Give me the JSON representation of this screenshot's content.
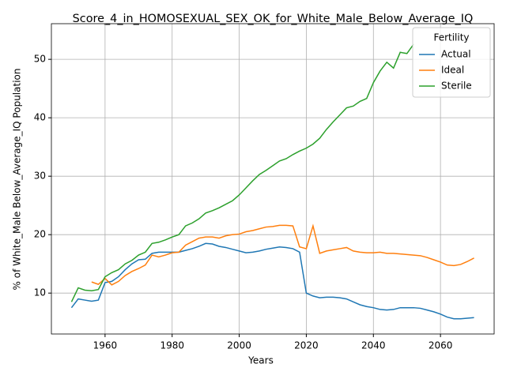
{
  "chart_data": {
    "type": "line",
    "title": "Score_4_in_HOMOSEXUAL_SEX_OK_for_White_Male_Below_Average_IQ",
    "x_label": "Years",
    "y_label": "% of White_Male Below_Average_IQ Population",
    "legend_title": "Fertility",
    "legend_position": "upper right",
    "grid": true,
    "x": [
      1950,
      1952,
      1954,
      1956,
      1958,
      1960,
      1962,
      1964,
      1966,
      1968,
      1970,
      1972,
      1974,
      1976,
      1978,
      1980,
      1982,
      1984,
      1986,
      1988,
      1990,
      1992,
      1994,
      1996,
      1998,
      2000,
      2002,
      2004,
      2006,
      2008,
      2010,
      2012,
      2014,
      2016,
      2018,
      2020,
      2022,
      2024,
      2026,
      2028,
      2030,
      2032,
      2034,
      2036,
      2038,
      2040,
      2042,
      2044,
      2046,
      2048,
      2050,
      2052,
      2054,
      2056,
      2058,
      2060,
      2062,
      2064,
      2066,
      2068,
      2070
    ],
    "series": [
      {
        "name": "Actual",
        "color": "#1f77b4",
        "values": [
          7.5,
          9.0,
          8.8,
          8.6,
          8.8,
          11.8,
          12.0,
          12.8,
          14.0,
          15.0,
          15.7,
          15.8,
          16.8,
          17.0,
          17.0,
          17.0,
          17.0,
          17.3,
          17.6,
          18.0,
          18.5,
          18.4,
          18.0,
          17.8,
          17.5,
          17.2,
          16.9,
          17.0,
          17.2,
          17.5,
          17.7,
          17.9,
          17.8,
          17.6,
          17.0,
          10.0,
          9.5,
          9.2,
          9.3,
          9.3,
          9.2,
          9.0,
          8.5,
          8.0,
          7.7,
          7.5,
          7.2,
          7.1,
          7.2,
          7.5,
          7.5,
          7.5,
          7.4,
          7.1,
          6.8,
          6.4,
          5.9,
          5.6,
          5.6,
          5.7,
          5.8
        ]
      },
      {
        "name": "Ideal",
        "color": "#ff7f0e",
        "values": [
          null,
          null,
          null,
          11.9,
          11.5,
          12.5,
          11.4,
          12.0,
          13.0,
          13.7,
          14.2,
          14.8,
          16.5,
          16.2,
          16.5,
          16.9,
          17.0,
          18.2,
          18.8,
          19.4,
          19.6,
          19.6,
          19.4,
          19.8,
          20.0,
          20.1,
          20.5,
          20.7,
          21.0,
          21.3,
          21.4,
          21.6,
          21.6,
          21.5,
          17.9,
          17.6,
          21.5,
          16.8,
          17.2,
          17.4,
          17.6,
          17.8,
          17.2,
          17.0,
          16.9,
          16.9,
          17.0,
          16.8,
          16.8,
          16.7,
          16.6,
          16.5,
          16.4,
          16.1,
          15.7,
          15.3,
          14.8,
          14.7,
          14.9,
          15.4,
          16.0
        ]
      },
      {
        "name": "Sterile",
        "color": "#2ca02c",
        "values": [
          8.5,
          10.9,
          10.5,
          10.4,
          10.6,
          12.8,
          13.5,
          14.0,
          15.0,
          15.6,
          16.5,
          17.0,
          18.5,
          18.7,
          19.1,
          19.6,
          20.0,
          21.5,
          22.0,
          22.7,
          23.7,
          24.1,
          24.6,
          25.2,
          25.8,
          26.8,
          28.0,
          29.2,
          30.3,
          31.0,
          31.8,
          32.6,
          33.0,
          33.7,
          34.3,
          34.8,
          35.5,
          36.5,
          38.0,
          39.3,
          40.5,
          41.7,
          42.0,
          42.8,
          43.3,
          46.0,
          48.0,
          49.5,
          48.5,
          51.2,
          51.0,
          52.6,
          null,
          null,
          null,
          null,
          null,
          null,
          null,
          null,
          null
        ]
      }
    ],
    "xlim": [
      1944,
      2076
    ],
    "xticks": [
      1960,
      1980,
      2000,
      2020,
      2040,
      2060
    ],
    "ylim": [
      3.0,
      56.1
    ],
    "yticks": [
      10,
      20,
      30,
      40,
      50
    ]
  }
}
